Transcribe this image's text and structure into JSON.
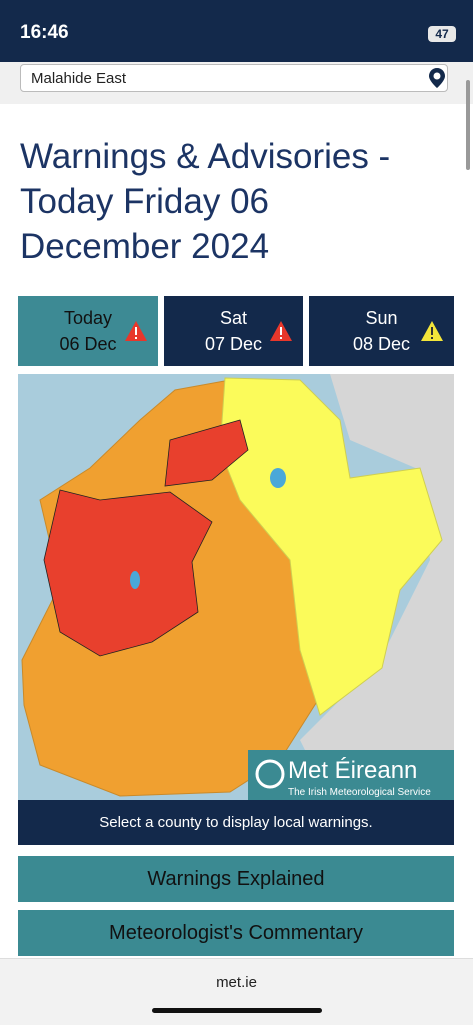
{
  "status_bar": {
    "time": "16:46",
    "battery": "47"
  },
  "search": {
    "location": "Malahide East"
  },
  "header": {
    "title": "Warnings & Advisories - Today Friday 06 December 2024"
  },
  "tabs": [
    {
      "day": "Today",
      "date": "06 Dec"
    },
    {
      "day": "Sat",
      "date": "07 Dec"
    },
    {
      "day": "Sun",
      "date": "08 Dec"
    }
  ],
  "map": {
    "logo_title": "Met Éireann",
    "logo_subtitle": "The Irish Meteorological Service",
    "caption": "Select a county to display local warnings."
  },
  "buttons": [
    "Warnings Explained",
    "Meteorologist's Commentary"
  ],
  "browser": {
    "url": "met.ie"
  }
}
